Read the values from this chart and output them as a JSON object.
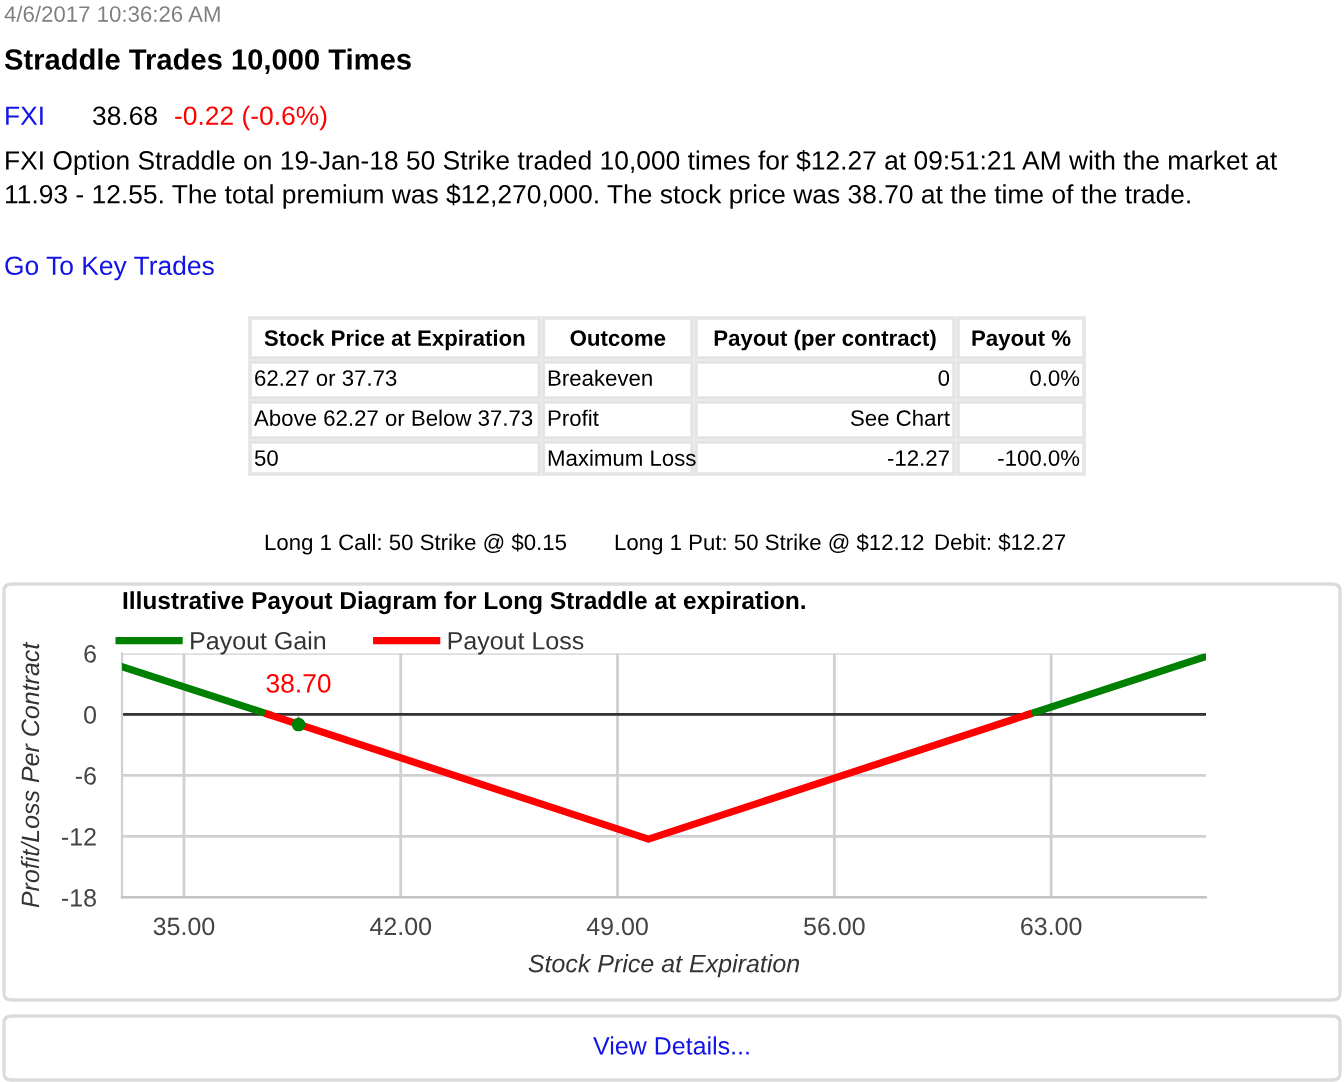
{
  "chart_data": {
    "type": "line",
    "title": "Illustrative Payout Diagram for Long Straddle at expiration.",
    "xlabel": "Stock Price at Expiration",
    "ylabel": "Profit/Loss Per Contract",
    "series": [
      {
        "name": "Payout Gain",
        "color": "#008000",
        "x": [
          33,
          37.73,
          50,
          62.27,
          68
        ],
        "values": [
          4.7,
          0,
          null,
          0,
          5.7
        ]
      },
      {
        "name": "Payout Loss",
        "color": "#ff0000",
        "x": [
          37.73,
          50,
          62.27
        ],
        "values": [
          0,
          -12.27,
          0
        ]
      },
      {
        "type": "scatter",
        "marker": "circle",
        "color": "#008000",
        "x": [
          38.7
        ],
        "values": [
          -1.0
        ]
      }
    ],
    "xlim": [
      33,
      68
    ],
    "xticks": [
      {
        "value": 35,
        "label": "35.00"
      },
      {
        "value": 42,
        "label": "42.00"
      },
      {
        "value": 49,
        "label": "49.00"
      },
      {
        "value": 56,
        "label": "56.00"
      },
      {
        "value": 63,
        "label": "63.00"
      }
    ],
    "ylim": [
      -18,
      6
    ],
    "yticks": [
      -18,
      -12,
      -6,
      0,
      6
    ],
    "grid": true,
    "legend": "top left",
    "marker": "none",
    "line_style": "solid",
    "ref_lines": [
      {
        "axis": "y",
        "value": 0,
        "color": "#333333"
      }
    ],
    "annotations": [
      {
        "text": "38.70",
        "x": 38.7,
        "y": -1.0
      },
      "4/6/2017 10:36:26 AM",
      "Straddle Trades 10,000 Times",
      "FXI",
      "38.68",
      "-0.22 (-0.6%)",
      "FXI Option Straddle on 19-Jan-18 50 Strike traded 10,000 times for $12.27 at 09:51:21 AM with the market at 11.93 - 12.55. The total premium was $12,270,000. The stock price was 38.70 at the time of the trade.",
      "Go To Key Trades",
      "Stock Price at Expiration",
      "Outcome",
      "Payout (per contract)",
      "Payout %",
      "62.27 or 37.73",
      "Breakeven",
      "0",
      "0.0%",
      "Above 62.27 or Below 37.73",
      "Profit",
      "See Chart",
      "50",
      "Maximum Loss",
      "-12.27",
      "-100.0%",
      "Long 1 Call: 50 Strike @ $0.15",
      "Long 1 Put: 50 Strike @ $12.12",
      "Debit: $12.27",
      "View Details..."
    ]
  }
}
